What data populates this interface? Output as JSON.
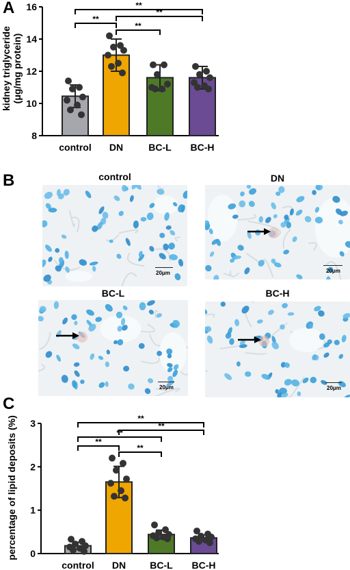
{
  "panels": {
    "a": "A",
    "b": "B",
    "c": "C"
  },
  "chart_data": [
    {
      "id": "A",
      "type": "bar",
      "ylabel_line1": "kidney triglyceride",
      "ylabel_line2": "(μg/mg protein)",
      "categories": [
        "control",
        "DN",
        "BC-L",
        "BC-H"
      ],
      "colors": [
        "#a6a6ad",
        "#efa600",
        "#4e7a28",
        "#6a4b94"
      ],
      "values": [
        10.45,
        13.0,
        11.6,
        11.6
      ],
      "errors": [
        0.7,
        1.0,
        0.8,
        0.7
      ],
      "points": [
        [
          11.4,
          11.0,
          10.9,
          10.4,
          10.2,
          9.9,
          9.6,
          9.3
        ],
        [
          14.2,
          13.6,
          13.5,
          13.3,
          13.0,
          12.5,
          12.3,
          11.9
        ],
        [
          12.4,
          12.4,
          11.8,
          11.2,
          11.0,
          10.9,
          10.9
        ],
        [
          12.3,
          12.0,
          11.8,
          11.6,
          11.3,
          11.1,
          11.0,
          10.9
        ]
      ],
      "ylim": [
        8,
        16
      ],
      "yticks": [
        "8",
        "10",
        "12",
        "14",
        "16"
      ],
      "significance": [
        {
          "from": 0,
          "to": 3,
          "label": "**"
        },
        {
          "from": 1,
          "to": 3,
          "label": "**"
        },
        {
          "from": 0,
          "to": 1,
          "label": "**"
        },
        {
          "from": 1,
          "to": 2,
          "label": "**"
        }
      ]
    },
    {
      "id": "C",
      "type": "bar",
      "ylabel": "percentage of lipid deposits (%)",
      "categories": [
        "control",
        "DN",
        "BC-L",
        "BC-H"
      ],
      "colors": [
        "#a6a6ad",
        "#efa600",
        "#4e7a28",
        "#6a4b94"
      ],
      "values": [
        0.18,
        1.65,
        0.44,
        0.36
      ],
      "errors": [
        0.08,
        0.36,
        0.1,
        0.07
      ],
      "points": [
        [
          0.33,
          0.28,
          0.22,
          0.18,
          0.15,
          0.12,
          0.08,
          0.05
        ],
        [
          2.2,
          2.08,
          1.92,
          1.72,
          1.62,
          1.45,
          1.32,
          1.28
        ],
        [
          0.66,
          0.55,
          0.48,
          0.44,
          0.41,
          0.38,
          0.36,
          0.34
        ],
        [
          0.52,
          0.45,
          0.4,
          0.38,
          0.34,
          0.31,
          0.28,
          0.25
        ]
      ],
      "ylim": [
        0,
        3
      ],
      "yticks": [
        "0",
        "1",
        "2",
        "3"
      ],
      "significance": [
        {
          "from": 0,
          "to": 3,
          "label": "**"
        },
        {
          "from": 1,
          "to": 3,
          "label": "**"
        },
        {
          "from": 0,
          "to": 2,
          "label": "**"
        },
        {
          "from": 0,
          "to": 1,
          "label": "**"
        },
        {
          "from": 1,
          "to": 2,
          "label": "**"
        }
      ]
    }
  ],
  "micrographs": [
    {
      "title": "control",
      "scale": "20μm",
      "arrow": false
    },
    {
      "title": "DN",
      "scale": "20μm",
      "arrow": true
    },
    {
      "title": "BC-L",
      "scale": "20μm",
      "arrow": true
    },
    {
      "title": "BC-H",
      "scale": "20μm",
      "arrow": true
    }
  ]
}
